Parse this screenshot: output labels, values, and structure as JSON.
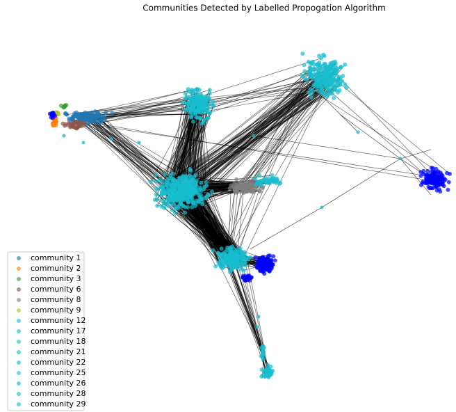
{
  "title": "Communities Detected by Labelled Propogation Algorithm",
  "legend": {
    "items": [
      {
        "name": "community 1",
        "color": "#1f77b4"
      },
      {
        "name": "community 2",
        "color": "#ff7f0e"
      },
      {
        "name": "community 3",
        "color": "#2ca02c"
      },
      {
        "name": "community 6",
        "color": "#8c564b"
      },
      {
        "name": "community 8",
        "color": "#7f7f7f"
      },
      {
        "name": "community 9",
        "color": "#bcbd22"
      },
      {
        "name": "community 12",
        "color": "#17becf"
      },
      {
        "name": "community 17",
        "color": "#17becf"
      },
      {
        "name": "community 18",
        "color": "#17becf"
      },
      {
        "name": "community 21",
        "color": "#17becf"
      },
      {
        "name": "community 22",
        "color": "#17becf"
      },
      {
        "name": "community 25",
        "color": "#17becf"
      },
      {
        "name": "community 26",
        "color": "#17becf"
      },
      {
        "name": "community 28",
        "color": "#17becf"
      },
      {
        "name": "community 29",
        "color": "#17becf"
      }
    ]
  }
}
